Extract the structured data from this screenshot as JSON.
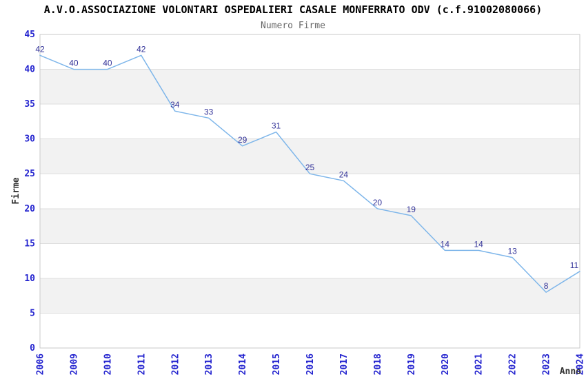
{
  "chart_data": {
    "type": "line",
    "title": "A.V.O.ASSOCIAZIONE VOLONTARI OSPEDALIERI CASALE MONFERRATO ODV (c.f.91002080066)",
    "subtitle": "Numero Firme",
    "xlabel": "Anno",
    "ylabel": "Firme",
    "categories": [
      "2006",
      "2009",
      "2010",
      "2011",
      "2012",
      "2013",
      "2014",
      "2015",
      "2016",
      "2017",
      "2018",
      "2019",
      "2020",
      "2021",
      "2022",
      "2023",
      "2024"
    ],
    "values": [
      42,
      40,
      40,
      42,
      34,
      33,
      29,
      31,
      25,
      24,
      20,
      19,
      14,
      14,
      13,
      8,
      11
    ],
    "ylim": [
      0,
      45
    ],
    "ytick_step": 5,
    "grid": true,
    "legend": "none",
    "band_pattern": "alternating gray stripes every 5 units starting gray at 5-10",
    "colors": {
      "line": "#7EB6EA",
      "data_label": "#333399",
      "tick_label": "#2424CF",
      "band": "#F2F2F2",
      "gridline": "#DDDDDD",
      "border": "#C9C9C9",
      "title": "#000000",
      "subtitle": "#666666",
      "axis_label": "#333333",
      "background": "#FFFFFF"
    }
  }
}
